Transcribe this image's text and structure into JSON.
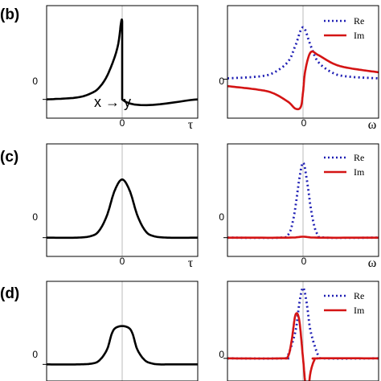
{
  "colors": {
    "time": "#000000",
    "re": "#1f1fb4",
    "im": "#d41414",
    "guide": "#aaaaaa"
  },
  "rows": [
    {
      "label": "(b)",
      "annotation": "x → y",
      "time_zero_label": "0",
      "freq_zero_label": "0",
      "time_axis_label": "τ",
      "freq_axis_label": "ω",
      "time_tick_label": "0",
      "freq_tick_label": "0"
    },
    {
      "label": "(c)",
      "annotation": "",
      "time_zero_label": "0",
      "freq_zero_label": "0",
      "time_axis_label": "τ",
      "freq_axis_label": "ω",
      "time_tick_label": "0",
      "freq_tick_label": "0"
    },
    {
      "label": "(d)",
      "annotation": "",
      "time_zero_label": "0",
      "freq_zero_label": "0",
      "time_axis_label": "",
      "freq_axis_label": "",
      "time_tick_label": "",
      "freq_tick_label": ""
    }
  ],
  "legend": {
    "re_label": "Re",
    "im_label": "Im"
  },
  "chart_data": [
    {
      "panel": "(b) time",
      "type": "line",
      "xlim": [
        -1,
        1
      ],
      "ylim": [
        -0.2,
        1
      ],
      "series": [
        {
          "x": [
            -1,
            -0.6,
            -0.4,
            -0.3,
            -0.2,
            -0.1,
            -0.05,
            0,
            0,
            1
          ],
          "y": [
            0,
            0.02,
            0.07,
            0.13,
            0.25,
            0.45,
            0.6,
            0.83,
            0,
            0
          ]
        }
      ]
    },
    {
      "panel": "(b) frequency",
      "type": "line",
      "xlim": [
        -1,
        1
      ],
      "ylim": [
        -0.45,
        0.85
      ],
      "series": [
        {
          "name": "Re",
          "x": [
            -1,
            -0.6,
            -0.4,
            -0.2,
            -0.1,
            0,
            0.1,
            0.2,
            0.4,
            0.6,
            1
          ],
          "y": [
            0.01,
            0.03,
            0.07,
            0.2,
            0.39,
            0.6,
            0.39,
            0.2,
            0.07,
            0.03,
            0.01
          ]
        },
        {
          "name": "Im",
          "x": [
            -1,
            -0.6,
            -0.4,
            -0.2,
            -0.1,
            -0.03,
            0,
            0.03,
            0.1,
            0.2,
            0.4,
            0.6,
            1
          ],
          "y": [
            -0.08,
            -0.12,
            -0.16,
            -0.26,
            -0.34,
            -0.32,
            -0.15,
            0.1,
            0.31,
            0.28,
            0.18,
            0.13,
            0.08
          ]
        }
      ]
    },
    {
      "panel": "(c) time",
      "type": "line",
      "xlim": [
        -1,
        1
      ],
      "ylim": [
        -0.2,
        1
      ],
      "series": [
        {
          "x": [
            -1,
            -0.6,
            -0.4,
            -0.3,
            -0.2,
            -0.1,
            0,
            0.1,
            0.2,
            0.3,
            0.4,
            0.6,
            1
          ],
          "y": [
            0,
            0,
            0.02,
            0.08,
            0.24,
            0.5,
            0.62,
            0.5,
            0.24,
            0.08,
            0.02,
            0,
            0
          ]
        }
      ]
    },
    {
      "panel": "(c) frequency",
      "type": "line",
      "xlim": [
        -1,
        1
      ],
      "ylim": [
        -0.2,
        1
      ],
      "series": [
        {
          "name": "Re",
          "x": [
            -1,
            -0.3,
            -0.2,
            -0.15,
            -0.1,
            -0.05,
            0,
            0.05,
            0.1,
            0.15,
            0.2,
            0.3,
            1
          ],
          "y": [
            0,
            0,
            0.03,
            0.12,
            0.33,
            0.62,
            0.8,
            0.62,
            0.33,
            0.12,
            0.03,
            0,
            0
          ]
        },
        {
          "name": "Im",
          "x": [
            -1,
            -0.2,
            0,
            0.2,
            1
          ],
          "y": [
            0,
            0,
            0.01,
            0,
            0
          ]
        }
      ]
    },
    {
      "panel": "(d) time",
      "type": "line",
      "xlim": [
        -1,
        1
      ],
      "ylim": [
        -0.2,
        1
      ],
      "series": [
        {
          "x": [
            -1,
            -0.6,
            -0.4,
            -0.3,
            -0.2,
            -0.1,
            0.1,
            0.2,
            0.3,
            0.4,
            0.5,
            0.6,
            1
          ],
          "y": [
            0,
            0,
            0.01,
            0.05,
            0.18,
            0.43,
            0.43,
            0.18,
            0.05,
            0.01,
            0,
            0,
            0
          ]
        }
      ]
    },
    {
      "panel": "(d) frequency",
      "type": "line",
      "xlim": [
        -1,
        1
      ],
      "ylim": [
        -0.25,
        0.85
      ],
      "series": [
        {
          "name": "Re",
          "x": [
            -1,
            -0.25,
            -0.2,
            -0.1,
            -0.05,
            0,
            0.05,
            0.1,
            0.2,
            0.25,
            1
          ],
          "y": [
            0,
            0,
            0.03,
            0.3,
            0.6,
            0.78,
            0.6,
            0.3,
            0.03,
            0,
            0
          ]
        },
        {
          "name": "Im",
          "x": [
            -1,
            -0.3,
            -0.2,
            -0.15,
            -0.1,
            -0.05,
            0,
            0.05,
            0.1,
            0.15,
            0.2,
            1
          ],
          "y": [
            0,
            0,
            0.02,
            0.2,
            0.48,
            0.42,
            0.0,
            -0.4,
            -0.15,
            -0.02,
            0,
            0
          ]
        }
      ]
    }
  ]
}
